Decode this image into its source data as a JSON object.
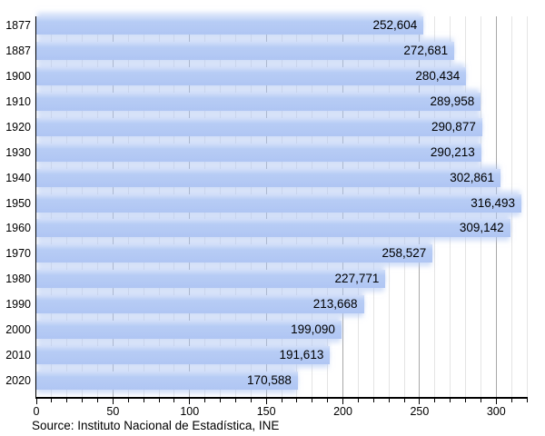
{
  "chart_data": {
    "type": "bar",
    "orientation": "horizontal",
    "title": "",
    "xlabel": "",
    "ylabel": "",
    "categories": [
      "1877",
      "1887",
      "1900",
      "1910",
      "1920",
      "1930",
      "1940",
      "1950",
      "1960",
      "1970",
      "1980",
      "1990",
      "2000",
      "2010",
      "2020"
    ],
    "values": [
      252604,
      272681,
      280434,
      289958,
      290877,
      290213,
      302861,
      316493,
      309142,
      258527,
      227771,
      213668,
      199090,
      191613,
      170588
    ],
    "value_labels": [
      "252,604",
      "272,681",
      "280,434",
      "289,958",
      "290,877",
      "290,213",
      "302,861",
      "316,493",
      "309,142",
      "258,527",
      "227,771",
      "213,668",
      "199,090",
      "191,613",
      "170,588"
    ],
    "axis_unit_divisor": 1000,
    "xlim": [
      0,
      320
    ],
    "x_major_ticks": [
      0,
      50,
      100,
      150,
      200,
      250,
      300
    ],
    "x_major_tick_labels": [
      "0",
      "50",
      "100",
      "150",
      "200",
      "250",
      "300"
    ],
    "x_minor_step": 10,
    "grid": true,
    "legend": false,
    "bar_color": "#b3c8f3"
  },
  "source_note": "Source: Instituto Nacional de Estadística, INE",
  "colors": {
    "bar_fill": "#b3c8f3",
    "bar_fill_light": "#d2def9",
    "grid_minor": "#e4e4e4",
    "grid_major": "#a8a8a8",
    "axis": "#000000",
    "text": "#000000",
    "background": "#ffffff"
  }
}
